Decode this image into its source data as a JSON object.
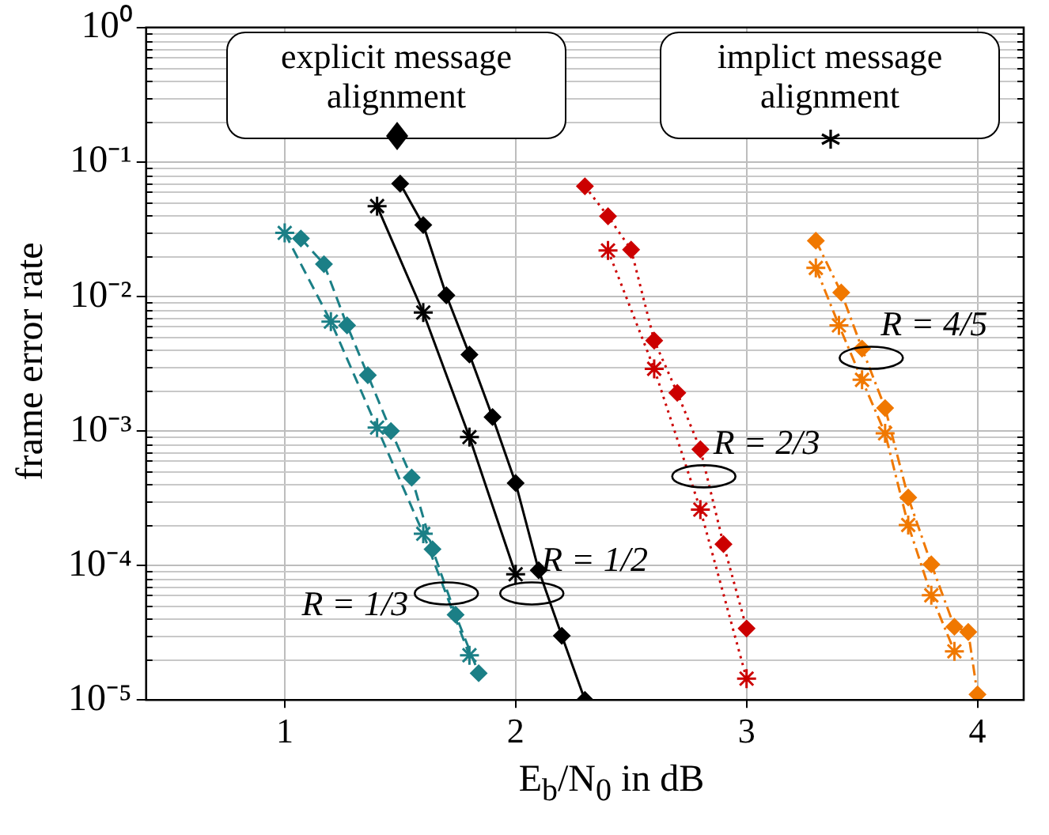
{
  "chart_data": {
    "type": "line",
    "xlabel": "E$_{b}$/N$_{0}$ in dB",
    "ylabel": "frame error rate",
    "xlim": [
      0.4,
      4.2
    ],
    "xticks": [
      1,
      2,
      3,
      4
    ],
    "ylim": [
      1e-05,
      1
    ],
    "log": "y",
    "grid": true,
    "legend": false,
    "yticks": [
      {
        "value": 1,
        "label": "10⁰"
      },
      {
        "value": 0.1,
        "label": "10⁻¹"
      },
      {
        "value": 0.01,
        "label": "10⁻²"
      },
      {
        "value": 0.001,
        "label": "10⁻³"
      },
      {
        "value": 0.0001,
        "label": "10⁻⁴"
      },
      {
        "value": 1e-05,
        "label": "10⁻⁵"
      }
    ],
    "series": [
      {
        "color": "#1b7f86",
        "marker": "diamond",
        "line_style": "dashed",
        "x": [
          1.07,
          1.17,
          1.27,
          1.36,
          1.46,
          1.55,
          1.64,
          1.74,
          1.84
        ],
        "values": [
          0.027,
          0.0174,
          0.0061,
          0.0026,
          0.001,
          0.00045,
          0.000132,
          4.3e-05,
          1.58e-05
        ]
      },
      {
        "color": "#1b7f86",
        "marker": "cross",
        "line_style": "dashed",
        "x": [
          1.0,
          1.2,
          1.4,
          1.6,
          1.8
        ],
        "values": [
          0.0297,
          0.0065,
          0.00106,
          0.000172,
          2.15e-05
        ]
      },
      {
        "color": "#000000",
        "marker": "diamond",
        "line_style": "solid",
        "x": [
          1.5,
          1.6,
          1.7,
          1.8,
          1.9,
          2.0,
          2.1,
          2.2,
          2.3
        ],
        "values": [
          0.069,
          0.034,
          0.0102,
          0.0037,
          0.00127,
          0.00041,
          9.2e-05,
          3e-05,
          1e-05
        ]
      },
      {
        "color": "#000000",
        "marker": "cross",
        "line_style": "solid",
        "x": [
          1.4,
          1.6,
          1.8,
          2.0
        ],
        "values": [
          0.047,
          0.0076,
          0.0009,
          8.6e-05
        ]
      },
      {
        "color": "#cc0000",
        "marker": "diamond",
        "line_style": "dotted",
        "x": [
          2.3,
          2.4,
          2.5,
          2.6,
          2.7,
          2.8,
          2.9,
          3.0
        ],
        "values": [
          0.066,
          0.0395,
          0.0223,
          0.0047,
          0.00192,
          0.00073,
          0.000144,
          3.4e-05
        ]
      },
      {
        "color": "#cc0000",
        "marker": "cross",
        "line_style": "dotted",
        "x": [
          2.4,
          2.6,
          2.8,
          3.0
        ],
        "values": [
          0.022,
          0.0029,
          0.00026,
          1.44e-05
        ]
      },
      {
        "color": "#f07800",
        "marker": "diamond",
        "line_style": "dashdot",
        "x": [
          3.3,
          3.41,
          3.5,
          3.6,
          3.7,
          3.8,
          3.9,
          3.96,
          4.0
        ],
        "values": [
          0.026,
          0.0107,
          0.0041,
          0.00148,
          0.00032,
          0.000102,
          3.5e-05,
          3.2e-05,
          1.1e-05
        ]
      },
      {
        "color": "#f07800",
        "marker": "cross",
        "line_style": "dashdot",
        "x": [
          3.3,
          3.4,
          3.5,
          3.6,
          3.7,
          3.8,
          3.9
        ],
        "values": [
          0.0163,
          0.0061,
          0.0024,
          0.00096,
          0.0002,
          6e-05,
          2.3e-05
        ]
      }
    ],
    "annotations": [
      "explicit message alignment",
      "implict message alignment",
      {
        "text": "R = 1/3",
        "x": 1.7,
        "y": 6.2e-05
      },
      {
        "text": "R = 1/2",
        "x": 2.07,
        "y": 6.2e-05
      },
      {
        "text": "R = 2/3",
        "x": 2.815,
        "y": 0.00046
      },
      {
        "text": "R = 4/5",
        "x": 3.54,
        "y": 0.0035
      }
    ]
  }
}
